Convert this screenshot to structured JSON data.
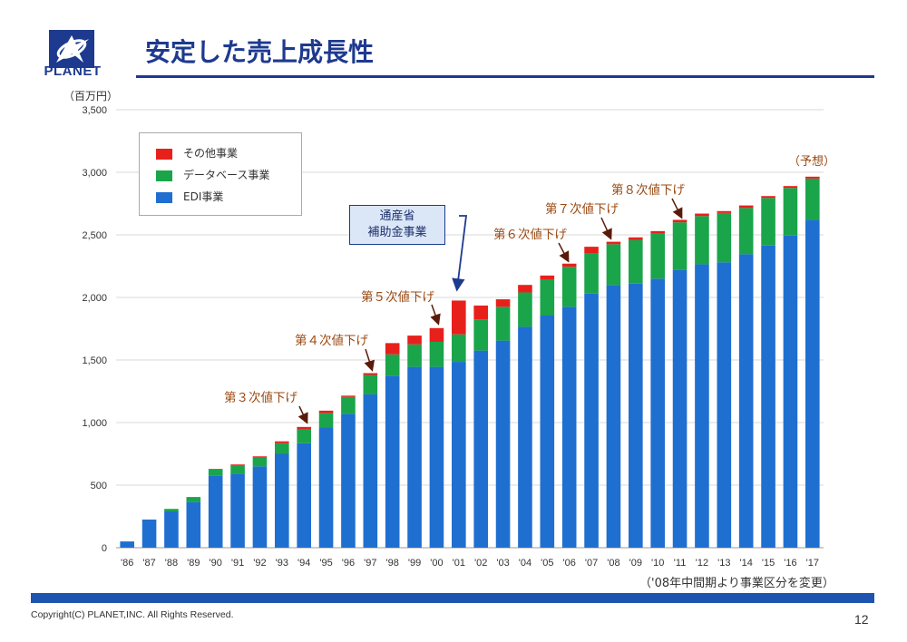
{
  "header": {
    "logo_text": "PLANET",
    "title": "安定した売上成長性"
  },
  "footer": {
    "copyright": "Copyright(C) PLANET,INC. All Rights Reserved.",
    "page_number": "12"
  },
  "colors": {
    "brand": "#1d3a8f",
    "edi": "#1f6fd1",
    "database": "#1aa54b",
    "other": "#e8201c",
    "callout_text": "#9b4a12"
  },
  "chart_data": {
    "type": "bar",
    "stacked": true,
    "unit_label": "（百万円）",
    "ylim": [
      0,
      3500
    ],
    "yticks": [
      0,
      500,
      1000,
      1500,
      2000,
      2500,
      3000,
      3500
    ],
    "ytick_labels": [
      "0",
      "500",
      "1,000",
      "1,500",
      "2,000",
      "2,500",
      "3,000",
      "3,500"
    ],
    "grid": true,
    "legend_position": "top-left",
    "categories": [
      "'86",
      "'87",
      "'88",
      "'89",
      "'90",
      "'91",
      "'92",
      "'93",
      "'94",
      "'95",
      "'96",
      "'97",
      "'98",
      "'99",
      "'00",
      "'01",
      "'02",
      "'03",
      "'04",
      "'05",
      "'06",
      "'07",
      "'08",
      "'09",
      "'10",
      "'11",
      "'12",
      "'13",
      "'14",
      "'15",
      "'16",
      "'17"
    ],
    "series": [
      {
        "name": "EDI事業",
        "color": "#1f6fd1",
        "values": [
          50,
          225,
          290,
          365,
          575,
          590,
          650,
          750,
          835,
          960,
          1070,
          1225,
          1375,
          1445,
          1445,
          1485,
          1575,
          1655,
          1765,
          1855,
          1925,
          2030,
          2100,
          2110,
          2150,
          2220,
          2265,
          2280,
          2345,
          2415,
          2495,
          2620
        ]
      },
      {
        "name": "データベース事業",
        "color": "#1aa54b",
        "values": [
          0,
          0,
          20,
          40,
          50,
          65,
          70,
          85,
          110,
          115,
          135,
          155,
          170,
          180,
          200,
          220,
          250,
          270,
          275,
          290,
          320,
          320,
          325,
          350,
          360,
          380,
          385,
          395,
          370,
          380,
          380,
          330
        ]
      },
      {
        "name": "その他事業",
        "color": "#e8201c",
        "values": [
          0,
          0,
          0,
          0,
          5,
          10,
          10,
          15,
          20,
          20,
          10,
          15,
          90,
          70,
          110,
          270,
          110,
          60,
          60,
          30,
          25,
          55,
          20,
          20,
          20,
          20,
          20,
          15,
          20,
          15,
          15,
          15
        ]
      }
    ],
    "annotations": {
      "cut3": "第３次値下げ",
      "cut4": "第４次値下げ",
      "cut5": "第５次値下げ",
      "cut6": "第６次値下げ",
      "cut7": "第７次値下げ",
      "cut8": "第８次値下げ",
      "subsidy_line1": "通産省",
      "subsidy_line2": "補助金事業",
      "forecast": "（予想）",
      "segment_note": "（'08年中間期より事業区分を変更）"
    }
  }
}
